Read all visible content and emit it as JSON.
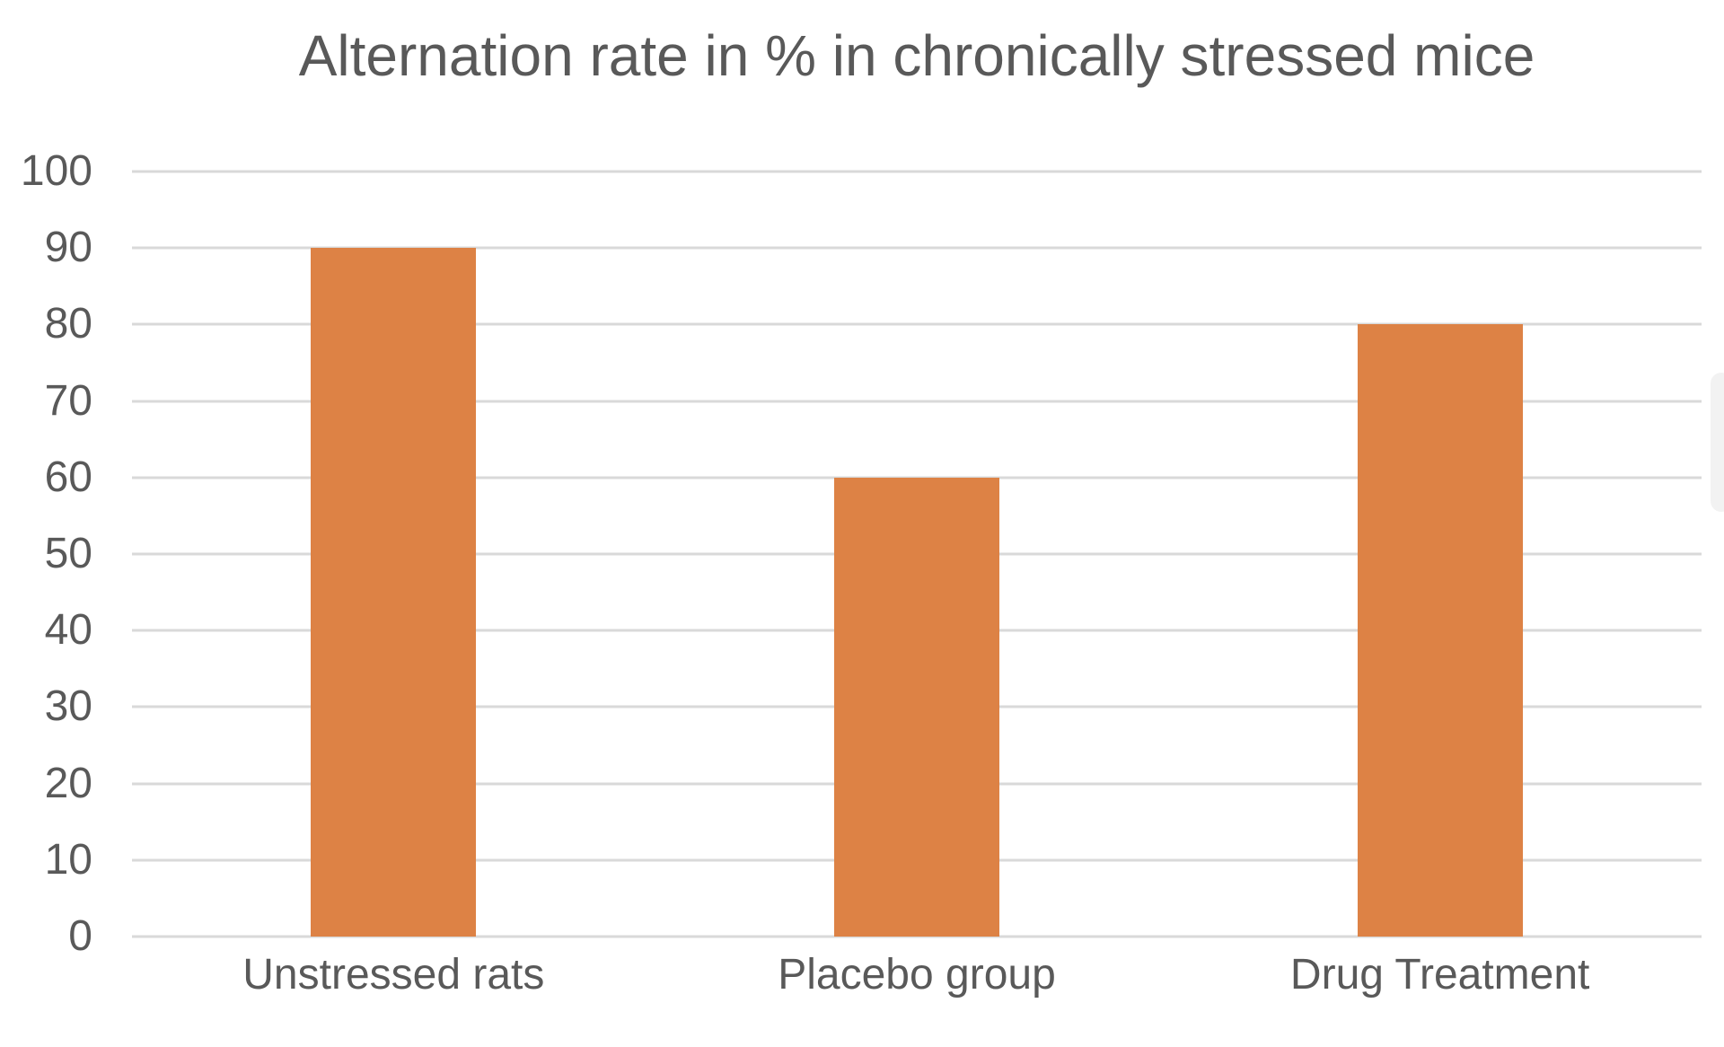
{
  "chart_data": {
    "type": "bar",
    "title": "Alternation rate in % in chronically stressed mice",
    "categories": [
      "Unstressed rats",
      "Placebo group",
      "Drug Treatment"
    ],
    "values": [
      90,
      60,
      80
    ],
    "xlabel": "",
    "ylabel": "",
    "ylim": [
      0,
      100
    ],
    "yticks": [
      0,
      10,
      20,
      30,
      40,
      50,
      60,
      70,
      80,
      90,
      100
    ],
    "grid": "horizontal",
    "legend": "none",
    "bar_color": "#DD8245",
    "gridline_color": "#D9D9D9",
    "text_color": "#595959",
    "background_color": "#FFFFFF"
  }
}
